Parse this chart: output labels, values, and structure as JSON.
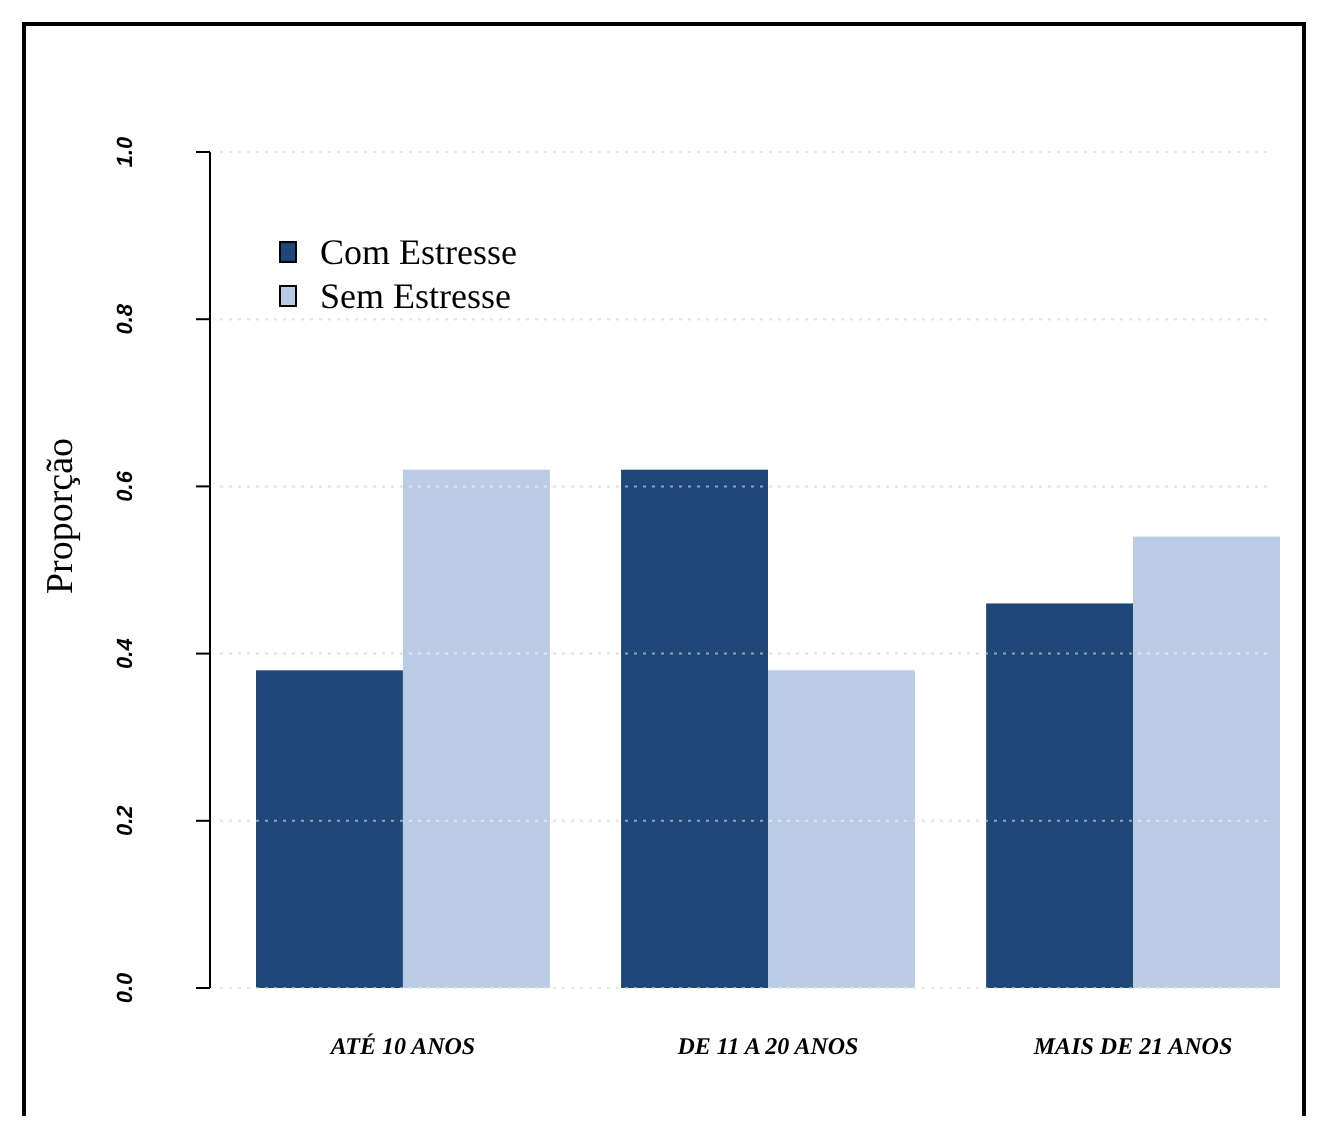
{
  "chart_data": {
    "type": "bar",
    "ylabel": "Proporção",
    "categories": [
      "ATÉ 10 ANOS",
      "DE 11 A 20 ANOS",
      "MAIS DE 21 ANOS"
    ],
    "series": [
      {
        "name": "Com Estresse",
        "color": "#1f4778",
        "values": [
          0.38,
          0.62,
          0.46
        ]
      },
      {
        "name": "Sem Estresse",
        "color": "#b9cce4",
        "values": [
          0.62,
          0.38,
          0.54
        ]
      }
    ],
    "ylim": [
      0,
      1
    ],
    "yticks": [
      {
        "value": 0,
        "label": "0.0"
      },
      {
        "value": 0.2,
        "label": "0.2"
      },
      {
        "value": 0.4,
        "label": "0.4"
      },
      {
        "value": 0.6,
        "label": "0.6"
      },
      {
        "value": 0.8,
        "label": "0.8"
      },
      {
        "value": 1,
        "label": "1.0"
      }
    ],
    "grid": "y",
    "legend": "top left"
  }
}
